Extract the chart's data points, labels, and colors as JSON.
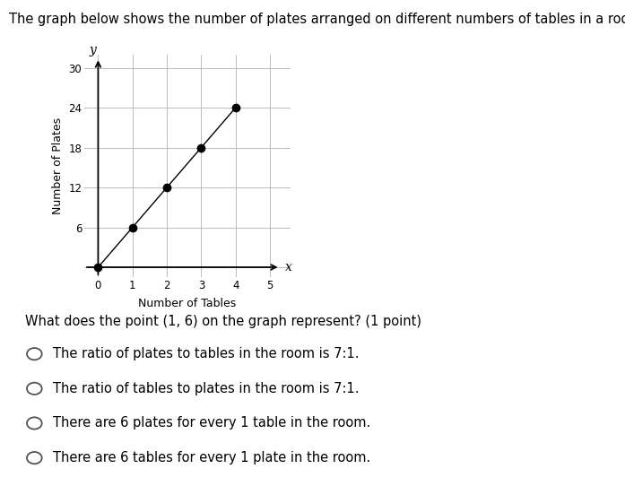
{
  "title": "The graph below shows the number of plates arranged on different numbers of tables in a room:",
  "xlabel": "Number of Tables",
  "ylabel": "Number of Plates",
  "x_axis_label": "x",
  "y_axis_label": "y",
  "x_data": [
    0,
    1,
    2,
    3,
    4
  ],
  "y_data": [
    0,
    6,
    12,
    18,
    24
  ],
  "xlim_min": -0.4,
  "xlim_max": 5.6,
  "ylim_min": -1.5,
  "ylim_max": 32,
  "xticks": [
    0,
    1,
    2,
    3,
    4,
    5
  ],
  "yticks": [
    0,
    6,
    12,
    18,
    24,
    30
  ],
  "line_color": "#000000",
  "marker_color": "#000000",
  "marker_size": 6,
  "grid_color": "#bbbbbb",
  "background_color": "#ffffff",
  "question": "What does the point (1, 6) on the graph represent? (1 point)",
  "options": [
    "The ratio of plates to tables in the room is 7:1.",
    "The ratio of tables to plates in the room is 7:1.",
    "There are 6 plates for every 1 table in the room.",
    "There are 6 tables for every 1 plate in the room."
  ],
  "title_fontsize": 10.5,
  "axis_label_fontsize": 9,
  "tick_fontsize": 8.5,
  "question_fontsize": 10.5,
  "option_fontsize": 10.5
}
